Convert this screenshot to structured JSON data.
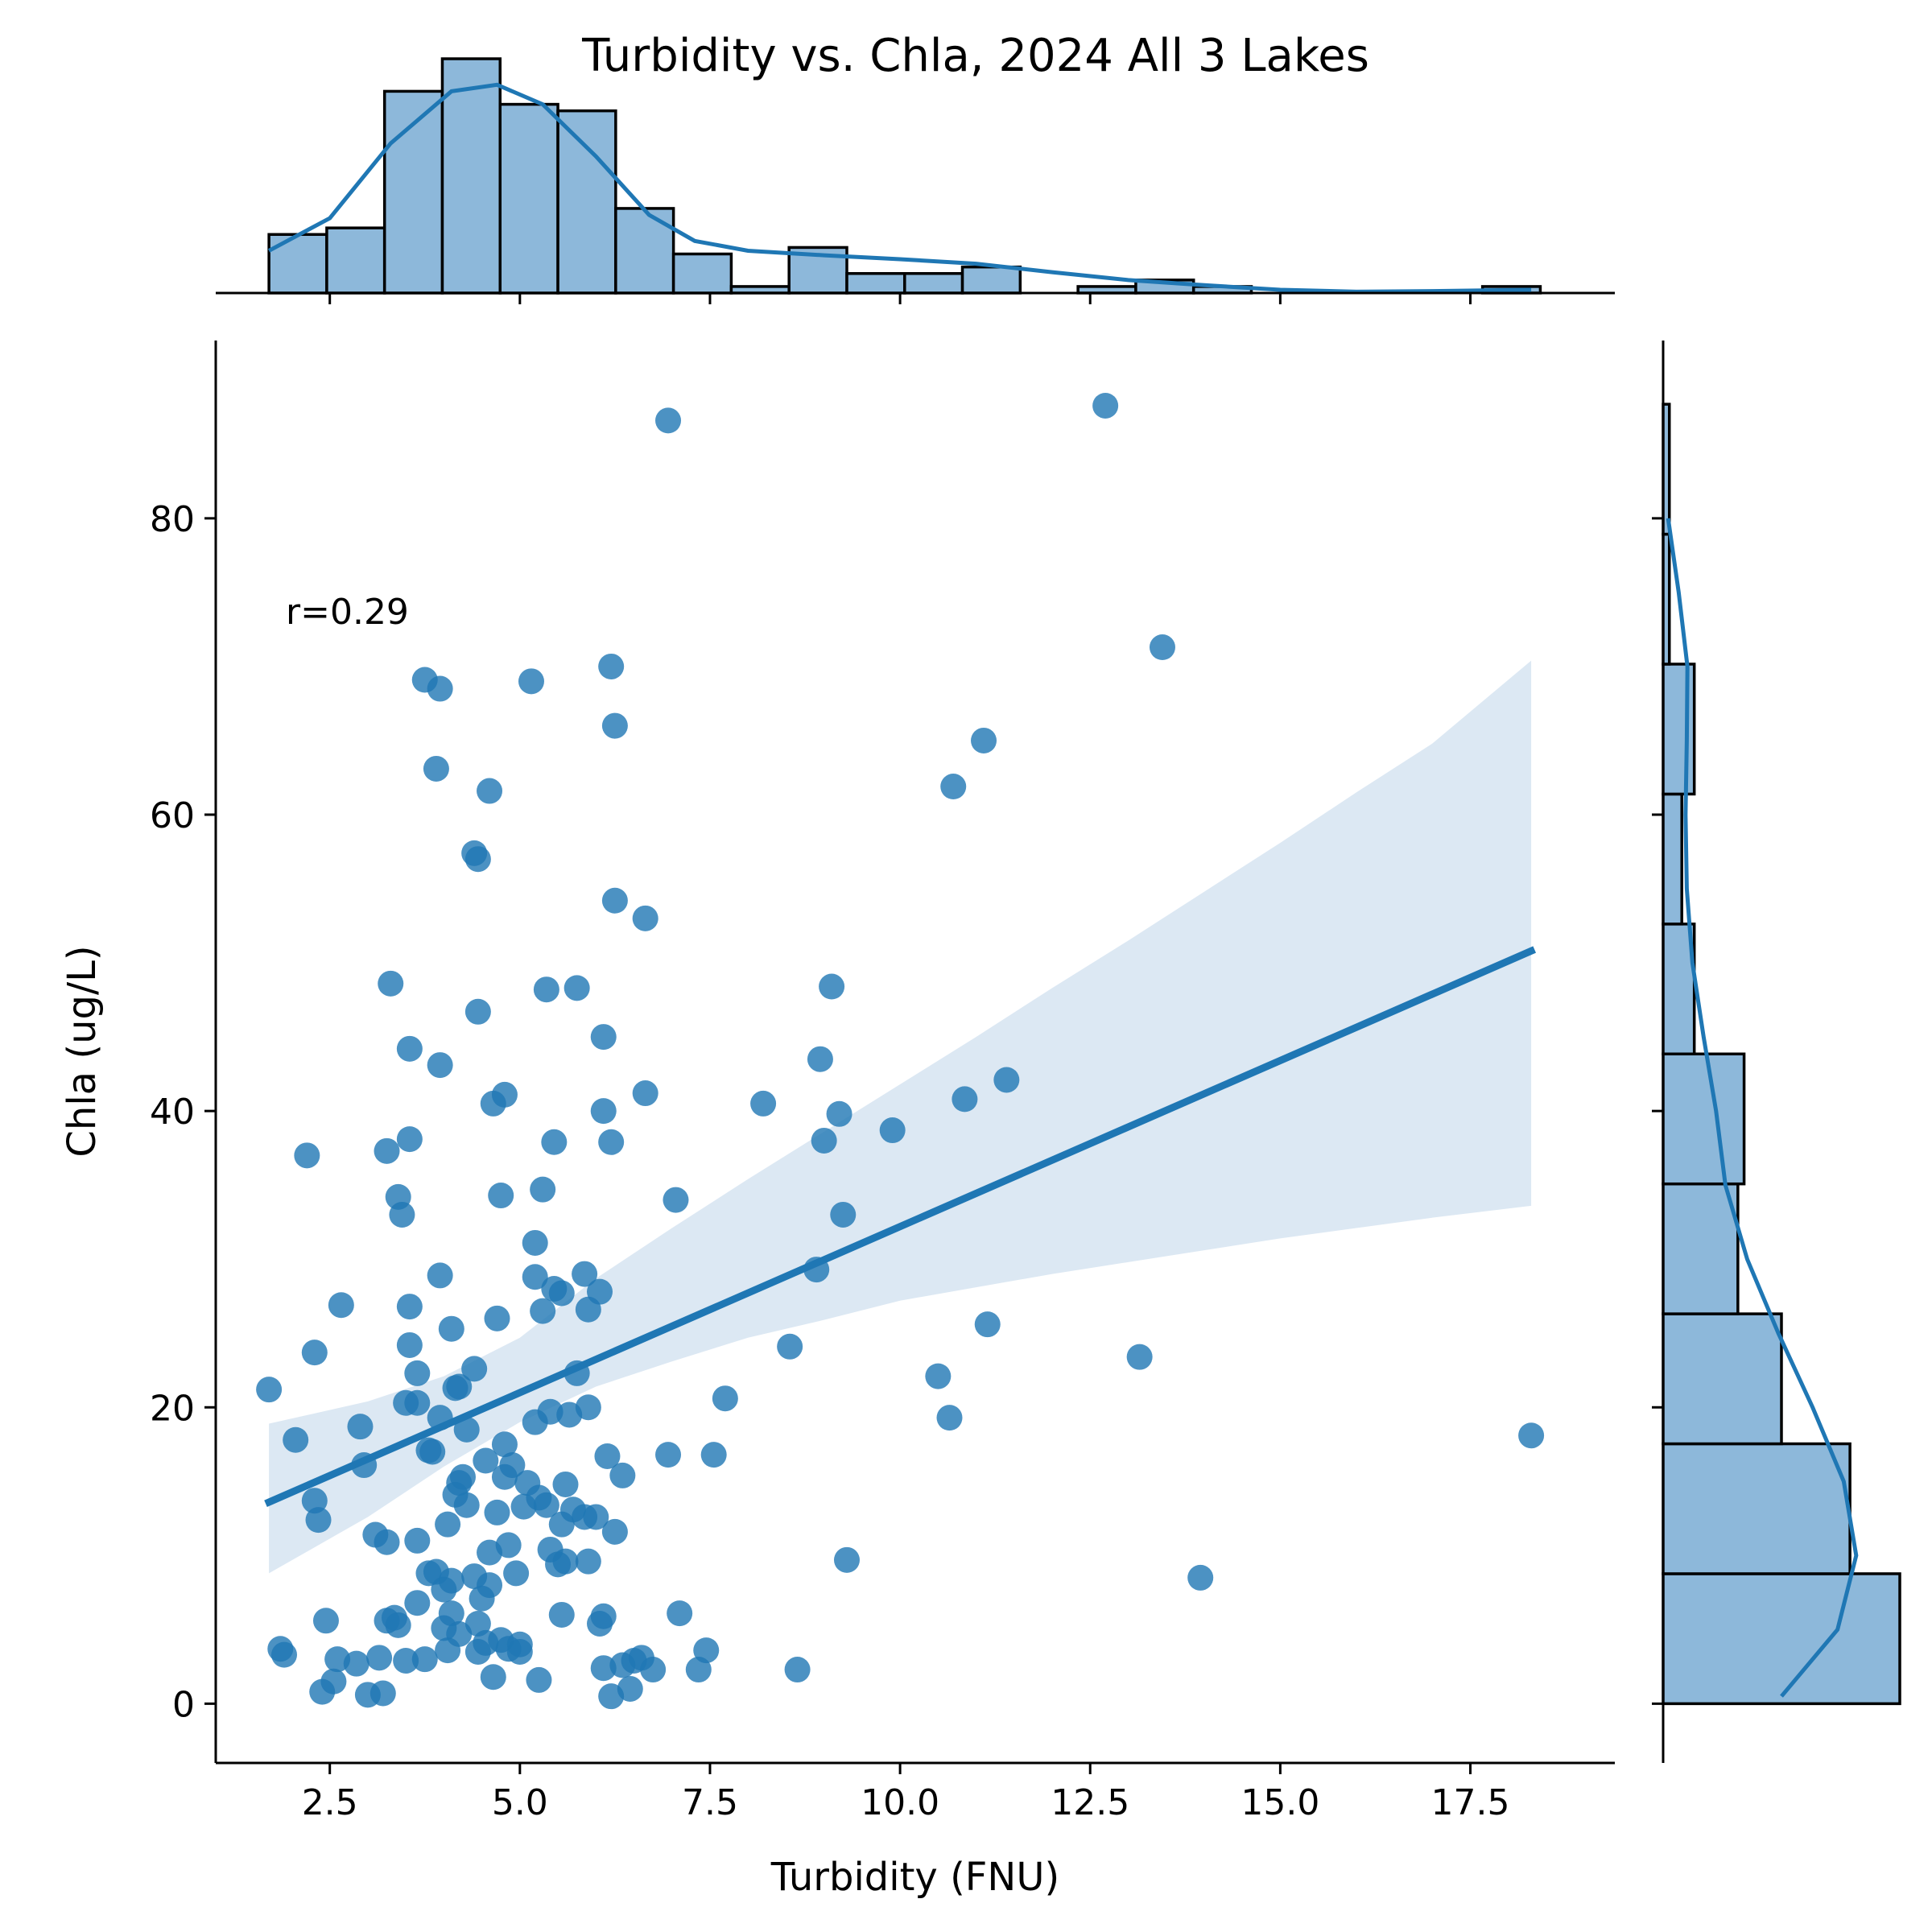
{
  "chart_data": {
    "type": "scatter",
    "title": "Turbidity vs. Chla, 2024 All 3 Lakes",
    "xlabel": "Turbidity (FNU)",
    "ylabel": "Chla (ug/L)",
    "annotation": "r=0.29",
    "xlim": [
      1.0,
      19.4
    ],
    "ylim": [
      -4,
      92
    ],
    "xticks": [
      2.5,
      5.0,
      7.5,
      10.0,
      12.5,
      15.0,
      17.5
    ],
    "xtick_labels": [
      "2.5",
      "5.0",
      "7.5",
      "10.0",
      "12.5",
      "15.0",
      "17.5"
    ],
    "yticks": [
      0,
      20,
      40,
      60,
      80
    ],
    "ytick_labels": [
      "0",
      "20",
      "40",
      "60",
      "80"
    ],
    "colors": {
      "points": "#1f77b4",
      "line": "#1f77b4",
      "ci_band": "#dce8f3",
      "hist_fill": "#8db8da",
      "hist_edge": "#000000"
    },
    "points": [
      [
        1.7,
        21.2
      ],
      [
        1.85,
        3.7
      ],
      [
        1.9,
        3.3
      ],
      [
        2.05,
        17.8
      ],
      [
        2.2,
        37.0
      ],
      [
        2.3,
        23.7
      ],
      [
        2.3,
        13.7
      ],
      [
        2.35,
        12.4
      ],
      [
        2.4,
        0.8
      ],
      [
        2.45,
        5.6
      ],
      [
        2.55,
        1.5
      ],
      [
        2.6,
        3.0
      ],
      [
        2.65,
        26.9
      ],
      [
        2.85,
        2.7
      ],
      [
        2.9,
        18.7
      ],
      [
        2.95,
        16.1
      ],
      [
        3.0,
        0.6
      ],
      [
        3.1,
        11.4
      ],
      [
        3.15,
        3.1
      ],
      [
        3.2,
        0.7
      ],
      [
        3.25,
        37.3
      ],
      [
        3.25,
        10.9
      ],
      [
        3.25,
        5.6
      ],
      [
        3.3,
        48.6
      ],
      [
        3.35,
        5.8
      ],
      [
        3.4,
        34.2
      ],
      [
        3.4,
        5.3
      ],
      [
        3.45,
        33.0
      ],
      [
        3.5,
        2.9
      ],
      [
        3.5,
        20.3
      ],
      [
        3.55,
        38.1
      ],
      [
        3.55,
        44.2
      ],
      [
        3.55,
        26.8
      ],
      [
        3.55,
        24.2
      ],
      [
        3.65,
        22.3
      ],
      [
        3.65,
        20.3
      ],
      [
        3.65,
        6.8
      ],
      [
        3.65,
        11.0
      ],
      [
        3.75,
        69.1
      ],
      [
        3.75,
        3.0
      ],
      [
        3.8,
        17.1
      ],
      [
        3.8,
        8.8
      ],
      [
        3.85,
        17.0
      ],
      [
        3.9,
        63.1
      ],
      [
        3.9,
        8.9
      ],
      [
        3.95,
        68.5
      ],
      [
        3.95,
        28.9
      ],
      [
        3.95,
        43.1
      ],
      [
        3.95,
        19.3
      ],
      [
        4.0,
        7.7
      ],
      [
        4.0,
        5.1
      ],
      [
        4.05,
        12.1
      ],
      [
        4.05,
        3.6
      ],
      [
        4.1,
        25.3
      ],
      [
        4.1,
        8.3
      ],
      [
        4.1,
        6.1
      ],
      [
        4.15,
        21.3
      ],
      [
        4.15,
        14.1
      ],
      [
        4.2,
        21.4
      ],
      [
        4.2,
        14.9
      ],
      [
        4.2,
        4.7
      ],
      [
        4.25,
        15.3
      ],
      [
        4.3,
        18.5
      ],
      [
        4.3,
        13.4
      ],
      [
        4.4,
        57.4
      ],
      [
        4.4,
        22.6
      ],
      [
        4.4,
        8.6
      ],
      [
        4.45,
        57.0
      ],
      [
        4.45,
        46.7
      ],
      [
        4.45,
        5.4
      ],
      [
        4.45,
        3.5
      ],
      [
        4.5,
        7.1
      ],
      [
        4.55,
        16.4
      ],
      [
        4.55,
        4.1
      ],
      [
        4.6,
        61.6
      ],
      [
        4.6,
        10.2
      ],
      [
        4.6,
        8.0
      ],
      [
        4.65,
        40.5
      ],
      [
        4.65,
        1.8
      ],
      [
        4.7,
        26.0
      ],
      [
        4.7,
        12.9
      ],
      [
        4.75,
        34.3
      ],
      [
        4.75,
        4.3
      ],
      [
        4.8,
        41.1
      ],
      [
        4.8,
        17.5
      ],
      [
        4.8,
        15.3
      ],
      [
        4.85,
        3.7
      ],
      [
        4.85,
        10.7
      ],
      [
        4.9,
        16.1
      ],
      [
        4.95,
        8.8
      ],
      [
        5.0,
        4.0
      ],
      [
        5.0,
        3.5
      ],
      [
        5.05,
        13.3
      ],
      [
        5.1,
        14.9
      ],
      [
        5.15,
        69.0
      ],
      [
        5.2,
        31.1
      ],
      [
        5.2,
        28.8
      ],
      [
        5.2,
        19.0
      ],
      [
        5.25,
        1.6
      ],
      [
        5.25,
        13.9
      ],
      [
        5.3,
        34.7
      ],
      [
        5.3,
        26.5
      ],
      [
        5.35,
        48.2
      ],
      [
        5.35,
        13.4
      ],
      [
        5.4,
        19.7
      ],
      [
        5.4,
        10.4
      ],
      [
        5.45,
        37.9
      ],
      [
        5.45,
        28.0
      ],
      [
        5.5,
        9.4
      ],
      [
        5.55,
        27.7
      ],
      [
        5.55,
        12.1
      ],
      [
        5.55,
        6.0
      ],
      [
        5.6,
        14.8
      ],
      [
        5.6,
        9.6
      ],
      [
        5.65,
        19.5
      ],
      [
        5.7,
        13.1
      ],
      [
        5.75,
        48.3
      ],
      [
        5.75,
        22.3
      ],
      [
        5.85,
        29.0
      ],
      [
        5.85,
        12.6
      ],
      [
        5.9,
        20.0
      ],
      [
        5.9,
        26.6
      ],
      [
        5.9,
        9.6
      ],
      [
        6.0,
        12.6
      ],
      [
        6.05,
        27.8
      ],
      [
        6.05,
        5.4
      ],
      [
        6.1,
        45.0
      ],
      [
        6.1,
        40.0
      ],
      [
        6.1,
        5.9
      ],
      [
        6.1,
        2.4
      ],
      [
        6.15,
        16.7
      ],
      [
        6.2,
        70.0
      ],
      [
        6.2,
        37.9
      ],
      [
        6.2,
        0.5
      ],
      [
        6.25,
        66.0
      ],
      [
        6.25,
        54.2
      ],
      [
        6.25,
        11.6
      ],
      [
        6.35,
        15.4
      ],
      [
        6.35,
        2.6
      ],
      [
        6.45,
        1.0
      ],
      [
        6.5,
        2.9
      ],
      [
        6.6,
        3.1
      ],
      [
        6.65,
        53.0
      ],
      [
        6.65,
        41.2
      ],
      [
        6.75,
        2.3
      ],
      [
        6.95,
        86.6
      ],
      [
        6.95,
        16.8
      ],
      [
        7.05,
        34.0
      ],
      [
        7.1,
        6.1
      ],
      [
        7.35,
        2.3
      ],
      [
        7.45,
        3.6
      ],
      [
        7.55,
        16.8
      ],
      [
        7.7,
        20.6
      ],
      [
        8.2,
        40.5
      ],
      [
        8.55,
        24.1
      ],
      [
        8.65,
        2.3
      ],
      [
        8.9,
        29.3
      ],
      [
        8.95,
        43.5
      ],
      [
        9.0,
        38.0
      ],
      [
        9.1,
        48.4
      ],
      [
        9.2,
        39.8
      ],
      [
        9.25,
        33.0
      ],
      [
        9.3,
        9.7
      ],
      [
        9.9,
        38.7
      ],
      [
        10.5,
        22.1
      ],
      [
        10.65,
        19.3
      ],
      [
        10.7,
        61.9
      ],
      [
        10.85,
        40.8
      ],
      [
        11.1,
        65.0
      ],
      [
        11.15,
        25.6
      ],
      [
        11.4,
        42.1
      ],
      [
        12.7,
        87.6
      ],
      [
        13.15,
        23.4
      ],
      [
        13.45,
        71.3
      ],
      [
        13.95,
        8.5
      ],
      [
        18.3,
        18.1
      ]
    ],
    "regression": {
      "x": [
        1.7,
        18.3
      ],
      "y": [
        13.6,
        50.8
      ]
    },
    "ci_band": {
      "x": [
        1.7,
        3.0,
        4.0,
        5.0,
        6.0,
        7.0,
        8.0,
        9.0,
        10.0,
        11.0,
        12.0,
        13.0,
        14.0,
        15.0,
        16.0,
        17.0,
        18.3
      ],
      "upper": [
        18.9,
        20.4,
        22.1,
        24.7,
        28.7,
        32.1,
        35.4,
        38.6,
        41.8,
        45.0,
        48.3,
        51.5,
        54.8,
        58.1,
        61.5,
        64.8,
        70.4
      ],
      "lower": [
        8.8,
        12.6,
        16.0,
        19.0,
        21.4,
        23.1,
        24.7,
        25.9,
        27.2,
        28.1,
        29.0,
        29.8,
        30.6,
        31.4,
        32.1,
        32.8,
        33.6
      ]
    },
    "x_histogram": {
      "edges": [
        1.7,
        2.46,
        3.22,
        3.98,
        4.74,
        5.5,
        6.26,
        7.02,
        7.78,
        8.54,
        9.3,
        10.06,
        10.82,
        11.58,
        12.34,
        13.1,
        13.86,
        14.62,
        15.38,
        16.14,
        16.9,
        17.66,
        18.42
      ],
      "counts": [
        9,
        10,
        31,
        36,
        29,
        28,
        13,
        6,
        1,
        7,
        3,
        3,
        4,
        0,
        1,
        2,
        1,
        0,
        0,
        0,
        0,
        1
      ],
      "kde_x": [
        1.7,
        2.5,
        3.3,
        4.1,
        4.7,
        5.3,
        6.0,
        6.7,
        7.3,
        8.0,
        9.0,
        10.0,
        11.0,
        12.0,
        13.0,
        14.0,
        15.0,
        16.0,
        17.0,
        18.3
      ],
      "kde_y": [
        6.5,
        11.5,
        23.0,
        31.0,
        32.0,
        29.0,
        21.0,
        12.0,
        8.0,
        6.5,
        5.8,
        5.2,
        4.5,
        3.2,
        2.0,
        1.2,
        0.5,
        0.2,
        0.3,
        0.5
      ]
    },
    "y_histogram": {
      "edges": [
        0,
        8.77,
        17.54,
        26.31,
        35.08,
        43.85,
        52.62,
        61.39,
        70.16,
        78.93,
        87.7
      ],
      "counts": [
        38,
        30,
        19,
        12,
        13,
        5,
        3,
        5,
        1,
        1
      ],
      "kde_y": [
        0.5,
        5,
        10,
        15,
        20,
        25,
        30,
        35,
        40,
        45,
        50,
        55,
        60,
        65,
        70,
        75,
        80
      ],
      "kde_x": [
        19.0,
        28.0,
        31.0,
        29.0,
        24.0,
        18.5,
        13.5,
        10.0,
        8.5,
        6.5,
        4.7,
        3.8,
        3.6,
        3.8,
        3.9,
        2.5,
        0.8
      ]
    }
  }
}
